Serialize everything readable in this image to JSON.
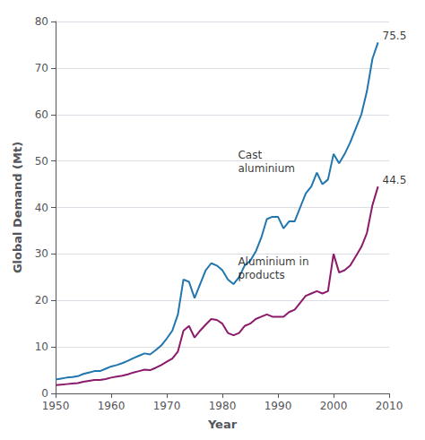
{
  "chart_data": {
    "type": "line",
    "x_label": "Year",
    "y_label": "Global Demand (Mt)",
    "x": [
      1950,
      1951,
      1952,
      1953,
      1954,
      1955,
      1956,
      1957,
      1958,
      1959,
      1960,
      1961,
      1962,
      1963,
      1964,
      1965,
      1966,
      1967,
      1968,
      1969,
      1970,
      1971,
      1972,
      1973,
      1974,
      1975,
      1976,
      1977,
      1978,
      1979,
      1980,
      1981,
      1982,
      1983,
      1984,
      1985,
      1986,
      1987,
      1988,
      1989,
      1990,
      1991,
      1992,
      1993,
      1994,
      1995,
      1996,
      1997,
      1998,
      1999,
      2000,
      2001,
      2002,
      2003,
      2004,
      2005,
      2006,
      2007,
      2008
    ],
    "series": [
      {
        "color": "#2176ae",
        "values": [
          3.0,
          3.2,
          3.4,
          3.5,
          3.7,
          4.2,
          4.5,
          4.8,
          4.8,
          5.3,
          5.8,
          6.1,
          6.5,
          7.0,
          7.6,
          8.1,
          8.6,
          8.4,
          9.3,
          10.3,
          11.8,
          13.5,
          17.0,
          24.5,
          24.0,
          20.5,
          23.5,
          26.5,
          28.0,
          27.5,
          26.5,
          24.5,
          23.5,
          25.0,
          27.5,
          28.5,
          30.5,
          33.5,
          37.5,
          38.0,
          38.0,
          35.5,
          37.0,
          37.0,
          40.0,
          43.0,
          44.5,
          47.5,
          45.0,
          46.0,
          51.5,
          49.5,
          51.5,
          54.0,
          57.0,
          60.0,
          65.0,
          72.0,
          75.5
        ]
      },
      {
        "color": "#8b1a6b",
        "values": [
          1.8,
          1.9,
          2.0,
          2.1,
          2.2,
          2.5,
          2.7,
          2.9,
          2.9,
          3.1,
          3.4,
          3.6,
          3.8,
          4.1,
          4.5,
          4.8,
          5.1,
          5.0,
          5.5,
          6.1,
          6.8,
          7.5,
          9.0,
          13.5,
          14.5,
          12.0,
          13.5,
          14.8,
          16.0,
          15.8,
          15.0,
          13.0,
          12.5,
          13.0,
          14.5,
          15.0,
          16.0,
          16.5,
          17.0,
          16.5,
          16.5,
          16.5,
          17.5,
          18.0,
          19.5,
          21.0,
          21.5,
          22.0,
          21.5,
          22.0,
          30.0,
          26.0,
          26.5,
          27.5,
          29.5,
          31.5,
          34.5,
          40.5,
          44.5
        ]
      }
    ],
    "annotations": [
      {
        "text": "75.5",
        "x": 2008,
        "y": 75.5
      },
      {
        "text": "44.5",
        "x": 2008,
        "y": 44.5
      },
      {
        "text": "Cast\naluminium",
        "x": 1982,
        "y": 47
      },
      {
        "text": "Aluminium in\nproducts",
        "x": 1982,
        "y": 24
      }
    ],
    "xlim": [
      1950,
      2010
    ],
    "xticks": [
      1950,
      1960,
      1970,
      1980,
      1990,
      2000,
      2010
    ],
    "ylim": [
      0,
      80
    ],
    "yticks": [
      0,
      10,
      20,
      30,
      40,
      50,
      60,
      70,
      80
    ],
    "grid": true
  }
}
